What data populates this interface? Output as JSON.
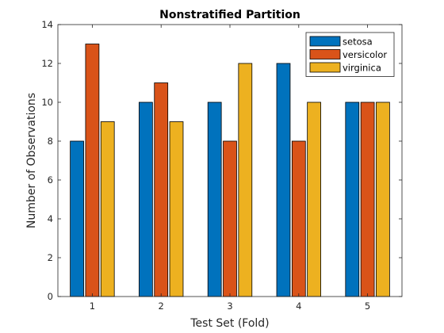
{
  "chart_data": {
    "type": "bar",
    "title": "Nonstratified Partition",
    "xlabel": "Test Set (Fold)",
    "ylabel": "Number of Observations",
    "categories": [
      "1",
      "2",
      "3",
      "4",
      "5"
    ],
    "ylim": [
      0,
      14
    ],
    "yticks": [
      0,
      2,
      4,
      6,
      8,
      10,
      12,
      14
    ],
    "grid": false,
    "legend_position": "top-right",
    "series": [
      {
        "name": "setosa",
        "color": "#0072BD",
        "values": [
          8,
          10,
          10,
          12,
          10
        ]
      },
      {
        "name": "versicolor",
        "color": "#D95319",
        "values": [
          13,
          11,
          8,
          8,
          10
        ]
      },
      {
        "name": "virginica",
        "color": "#EDB120",
        "values": [
          9,
          9,
          12,
          10,
          10
        ]
      }
    ]
  }
}
